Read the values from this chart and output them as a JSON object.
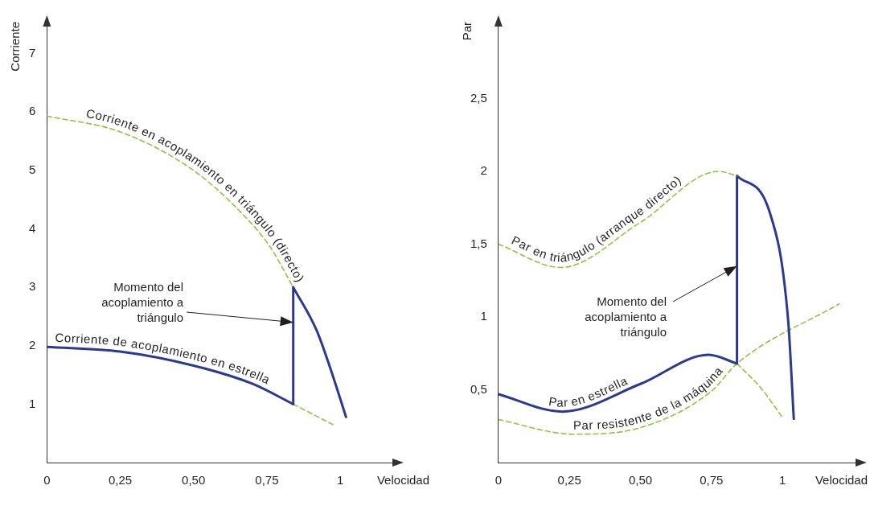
{
  "chart_data": [
    {
      "type": "line",
      "xlabel": "Velocidad",
      "ylabel": "Corriente",
      "xlim": [
        0,
        1.2
      ],
      "xticks": [
        {
          "value": 0,
          "label": "0"
        },
        {
          "value": 0.25,
          "label": "0,25"
        },
        {
          "value": 0.5,
          "label": "0,50"
        },
        {
          "value": 0.75,
          "label": "0,75"
        },
        {
          "value": 1,
          "label": "1"
        }
      ],
      "ylim": [
        0,
        7.6
      ],
      "yticks": [
        1,
        2,
        3,
        4,
        5,
        6,
        7
      ],
      "grid": false,
      "legend": false,
      "marker": "none",
      "series": [
        {
          "name": "Corriente en acoplamiento en triángulo (directo)",
          "color": "#8dc63f",
          "line_style": "dashed",
          "x": [
            0,
            0.25,
            0.5,
            0.66,
            0.76,
            0.84
          ],
          "values": [
            5.93,
            5.66,
            5.0,
            4.29,
            3.7,
            3.0
          ]
        },
        {
          "name": "Corriente de acoplamiento en estrella",
          "color": "#2b3990",
          "line_style": "solid",
          "x": [
            0,
            0.25,
            0.5,
            0.7,
            0.84
          ],
          "values": [
            1.98,
            1.9,
            1.66,
            1.35,
            1.0
          ]
        },
        {
          "color": "#2b3990",
          "line_style": "solid",
          "x": [
            0.84,
            0.84
          ],
          "values": [
            1.0,
            3.0
          ]
        },
        {
          "color": "#2b3990",
          "line_style": "solid",
          "x": [
            0.84,
            0.92,
            0.97,
            1.02
          ],
          "values": [
            3.0,
            2.26,
            1.56,
            0.78
          ]
        },
        {
          "color": "#8dc63f",
          "line_style": "dashed",
          "x": [
            0.84,
            0.975
          ],
          "values": [
            1.0,
            0.65
          ]
        }
      ],
      "annotations": [
        {
          "text": "Momento del acoplamiento a triángulo",
          "x": 0.84,
          "y": 2.4
        }
      ]
    },
    {
      "type": "line",
      "xlabel": "Velocidad",
      "ylabel": "Par",
      "xlim": [
        0,
        1.28
      ],
      "xticks": [
        {
          "value": 0,
          "label": "0"
        },
        {
          "value": 0.25,
          "label": "0,25"
        },
        {
          "value": 0.5,
          "label": "0,50"
        },
        {
          "value": 0.75,
          "label": "0,75"
        },
        {
          "value": 1,
          "label": "1"
        }
      ],
      "ylim": [
        0,
        3.05
      ],
      "yticks": [
        {
          "value": 0.5,
          "label": "0,5"
        },
        1,
        {
          "value": 1.5,
          "label": "1,5"
        },
        2,
        {
          "value": 2.5,
          "label": "2,5"
        }
      ],
      "grid": false,
      "legend": false,
      "marker": "none",
      "series": [
        {
          "name": "Par en triángulo (arranque directo)",
          "color": "#8dc63f",
          "line_style": "dashed",
          "x": [
            0,
            0.22,
            0.5,
            0.775,
            0.84
          ],
          "values": [
            1.5,
            1.34,
            1.65,
            2.0,
            1.97
          ]
        },
        {
          "name": "Par en estrella",
          "color": "#2b3990",
          "line_style": "solid",
          "x": [
            0,
            0.225,
            0.5,
            0.74,
            0.84
          ],
          "values": [
            0.47,
            0.35,
            0.54,
            0.74,
            0.68
          ]
        },
        {
          "color": "#2b3990",
          "line_style": "solid",
          "x": [
            0.84,
            0.84
          ],
          "values": [
            0.68,
            1.97
          ]
        },
        {
          "color": "#2b3990",
          "line_style": "solid",
          "x": [
            0.84,
            0.955,
            1.02,
            1.04
          ],
          "values": [
            1.97,
            1.72,
            0.98,
            0.3
          ]
        },
        {
          "color": "#8dc63f",
          "line_style": "dashed",
          "x": [
            0.84,
            0.925,
            1.0
          ],
          "values": [
            0.68,
            0.51,
            0.31
          ]
        },
        {
          "name": "Par resistente de la máquina",
          "color": "#8dc63f",
          "line_style": "dashed",
          "x": [
            0,
            0.265,
            0.5,
            0.75,
            0.84,
            1.2
          ],
          "values": [
            0.295,
            0.195,
            0.24,
            0.49,
            0.68,
            1.09
          ]
        }
      ],
      "annotations": [
        {
          "text": "Momento del acoplamiento a triángulo",
          "x": 0.84,
          "y": 1.35
        }
      ]
    }
  ]
}
